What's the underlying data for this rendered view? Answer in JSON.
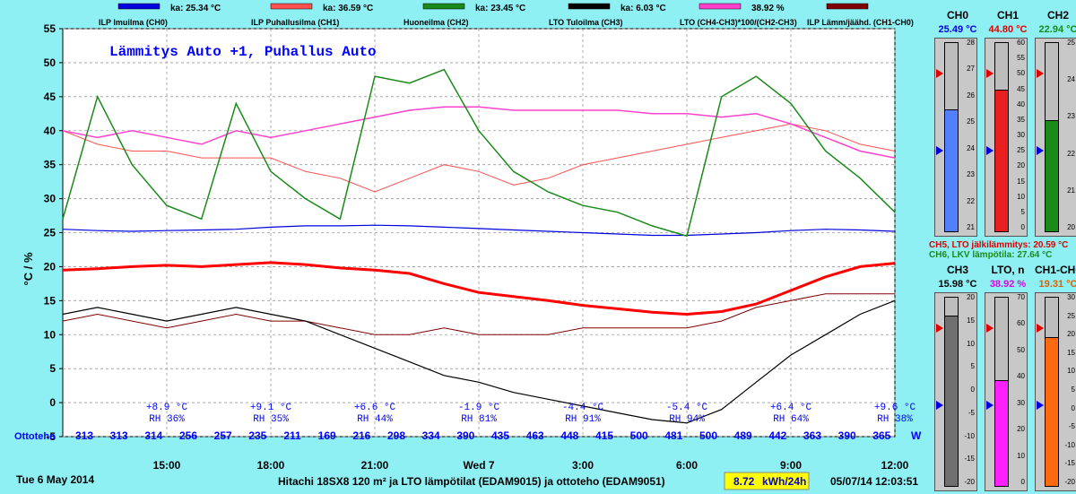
{
  "colors": {
    "background": "#8ff0f4",
    "plot_bg": "#ffffff",
    "grid": "#9a9a9a",
    "ch0": "#0000dd",
    "ch1": "#ff5050",
    "ch2": "#1a8a1a",
    "ch3": "#000000",
    "lto": "#ff40cc",
    "ch10": "#800000",
    "thick_red": "#ff0000",
    "annot_blue": "#0000ff"
  },
  "chart_data": {
    "type": "line",
    "title": "Lämmitys Auto +1, Puhallus Auto",
    "ylabel": "°C / %",
    "ylim": [
      -5,
      55
    ],
    "y_ticks": [
      "55",
      "50",
      "45",
      "40",
      "35",
      "30",
      "25",
      "20",
      "15",
      "10",
      "5",
      "0",
      "-5"
    ],
    "x_ticks": [
      "15:00",
      "18:00",
      "21:00",
      "Wed 7",
      "3:00",
      "6:00",
      "9:00",
      "12:00"
    ],
    "start_label": "Tue 6 May 2014",
    "grid": true,
    "legend_position": "top",
    "legend": [
      {
        "name": "ILP Imuilma (CH0)",
        "avg": "ka: 25.34 °C",
        "color": "#0000dd"
      },
      {
        "name": "ILP Puhallusilma (CH1)",
        "avg": "ka: 36.59 °C",
        "color": "#ff5050"
      },
      {
        "name": "Huoneilma (CH2)",
        "avg": "ka: 23.45 °C",
        "color": "#1a8a1a"
      },
      {
        "name": "LTO Tuloilma (CH3)",
        "avg": "ka: 6.03 °C",
        "color": "#000000"
      },
      {
        "name": "LTO (CH4-CH3)*100/(CH2-CH3)",
        "avg": "38.92 %",
        "color": "#ff40cc"
      },
      {
        "name": "ILP Lämm/jäähd. (CH1-CH0)",
        "avg": "",
        "color": "#800000"
      }
    ],
    "x": [
      12,
      13,
      14,
      15,
      16,
      17,
      18,
      19,
      20,
      21,
      22,
      23,
      24,
      25,
      26,
      27,
      28,
      29,
      30,
      31,
      32,
      33,
      34,
      35,
      36
    ],
    "series": [
      {
        "key": "ch0",
        "values": [
          25.5,
          25.3,
          25.2,
          25.3,
          25.4,
          25.5,
          25.8,
          26.0,
          26.0,
          26.1,
          26.0,
          25.8,
          25.6,
          25.4,
          25.2,
          25.0,
          24.8,
          24.6,
          24.6,
          24.8,
          25.0,
          25.3,
          25.5,
          25.4,
          25.2
        ]
      },
      {
        "key": "ch1",
        "values": [
          40,
          38,
          37,
          37,
          36,
          36,
          36,
          34,
          33,
          31,
          33,
          35,
          34,
          32,
          33,
          35,
          36,
          37,
          38,
          39,
          40,
          41,
          40,
          38,
          37
        ]
      },
      {
        "key": "ch2",
        "values": [
          27,
          45,
          35,
          29,
          27,
          44,
          34,
          30,
          27,
          48,
          47,
          49,
          40,
          34,
          31,
          29,
          28,
          26,
          24.5,
          45,
          48,
          44,
          37,
          33,
          28
        ]
      },
      {
        "key": "ch3",
        "values": [
          13,
          14,
          13,
          12,
          13,
          14,
          13,
          12,
          10,
          8,
          6,
          4,
          3,
          1.5,
          0.5,
          -0.5,
          -1.5,
          -2.5,
          -3,
          -1,
          3,
          7,
          10,
          13,
          15
        ]
      },
      {
        "key": "lto",
        "values": [
          40,
          39,
          40,
          39,
          38,
          40,
          39,
          40,
          41,
          42,
          43,
          43.5,
          43.5,
          43,
          43,
          43,
          43,
          42.5,
          42.5,
          42,
          42.5,
          41,
          39,
          37,
          36
        ]
      },
      {
        "key": "ch10",
        "values": [
          12,
          13,
          12,
          11,
          12,
          13,
          12,
          12,
          11,
          10,
          10,
          11,
          10,
          10,
          10,
          11,
          11,
          11,
          11,
          12,
          14,
          15,
          16,
          16,
          16
        ]
      },
      {
        "key": "thick_red",
        "values": [
          19.5,
          19.7,
          20.0,
          20.2,
          20.0,
          20.3,
          20.6,
          20.3,
          19.8,
          19.5,
          19.0,
          17.5,
          16.2,
          15.6,
          15.0,
          14.3,
          13.8,
          13.3,
          13.0,
          13.4,
          14.5,
          16.5,
          18.5,
          20.0,
          20.5
        ]
      }
    ],
    "temp_annotations": [
      {
        "temp": "+8.9 °C",
        "rh": "RH 36%",
        "x": 15
      },
      {
        "temp": "+9.1 °C",
        "rh": "RH 35%",
        "x": 18
      },
      {
        "temp": "+6.6 °C",
        "rh": "RH 44%",
        "x": 21
      },
      {
        "temp": "-1.9 °C",
        "rh": "RH 81%",
        "x": 24
      },
      {
        "temp": "-4.4 °C",
        "rh": "RH 91%",
        "x": 27
      },
      {
        "temp": "-5.4 °C",
        "rh": "RH 94%",
        "x": 30
      },
      {
        "temp": "+6.4 °C",
        "rh": "RH 64%",
        "x": 33
      },
      {
        "temp": "+9.6 °C",
        "rh": "RH 38%",
        "x": 36
      }
    ],
    "ottoteho_label": "Ottoteho",
    "ottoteho_unit": "W",
    "ottoteho_values": [
      "313",
      "313",
      "314",
      "256",
      "257",
      "235",
      "211",
      "169",
      "216",
      "298",
      "334",
      "390",
      "435",
      "463",
      "448",
      "415",
      "500",
      "481",
      "500",
      "489",
      "442",
      "363",
      "390",
      "365"
    ],
    "ottoteho_x": [
      12,
      13,
      14,
      15,
      16,
      17,
      18,
      19,
      20,
      21,
      22,
      23,
      24,
      25,
      26,
      27,
      28,
      29,
      30,
      31,
      32,
      33,
      34,
      35
    ]
  },
  "footer": {
    "device": "Hitachi 18SX8 120 m² ja LTO lämpötilat (EDAM9015) ja ottoteho (EDAM9051)",
    "energy": "8.72",
    "energy_unit": "kWh/24h",
    "timestamp": "05/07/14 12:03:51"
  },
  "gauges_top": [
    {
      "title": "CH0",
      "value": "25.49 °C",
      "value_color": "#0000dd",
      "fill_color": "#5080ff",
      "min": 21,
      "max": 28,
      "level": 25.49,
      "ticks": [
        "28",
        "27",
        "26",
        "25",
        "24",
        "23",
        "22",
        "21"
      ]
    },
    {
      "title": "CH1",
      "value": "44.80 °C",
      "value_color": "#e00000",
      "fill_color": "#e82020",
      "min": 0,
      "max": 60,
      "level": 44.8,
      "ticks": [
        "60",
        "55",
        "50",
        "45",
        "40",
        "35",
        "30",
        "25",
        "20",
        "15",
        "10",
        "5",
        "0"
      ]
    },
    {
      "title": "CH2",
      "value": "22.94 °C",
      "value_color": "#1a8a1a",
      "fill_color": "#1a8a1a",
      "min": 20,
      "max": 25,
      "level": 22.94,
      "ticks": [
        "25",
        "24",
        "23",
        "22",
        "21",
        "20"
      ]
    }
  ],
  "gauge_notes": {
    "ch5": "CH5, LTO jälkilämmitys: 20.59 °C",
    "ch6": "CH6, LKV lämpötila: 27.64 °C"
  },
  "gauges_bottom": [
    {
      "title": "CH3",
      "value": "15.98 °C",
      "value_color": "#000000",
      "fill_color": "#707070",
      "min": -20,
      "max": 20,
      "level": 15.98,
      "ticks": [
        "20",
        "15",
        "10",
        "5",
        "0",
        "-5",
        "-10",
        "-15",
        "-20"
      ]
    },
    {
      "title": "LTO, n",
      "value": "38.92 %",
      "value_color": "#dd00dd",
      "fill_color": "#ff20ff",
      "min": 0,
      "max": 70,
      "level": 38.92,
      "ticks": [
        "70",
        "60",
        "50",
        "40",
        "30",
        "20",
        "10",
        "0"
      ]
    },
    {
      "title": "CH1-CH0",
      "value": "19.31 °C",
      "value_color": "#e06000",
      "fill_color": "#ff6a10",
      "min": -20,
      "max": 30,
      "level": 19.31,
      "ticks": [
        "30",
        "25",
        "20",
        "15",
        "10",
        "5",
        "0",
        "-5",
        "-10",
        "-15",
        "-20"
      ]
    }
  ]
}
